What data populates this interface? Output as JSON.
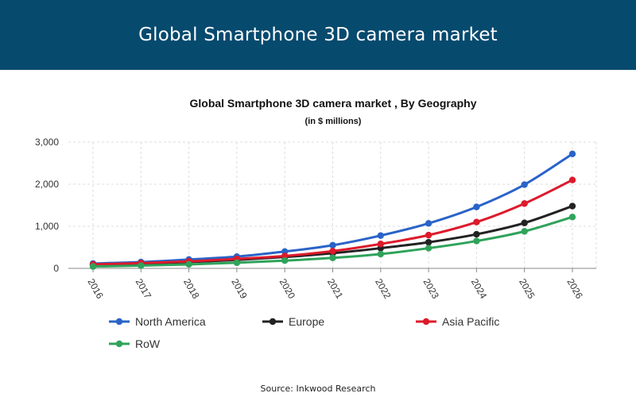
{
  "header": {
    "title": "Global Smartphone 3D camera market"
  },
  "footer": {
    "source": "Source: Inkwood Research"
  },
  "chart_data": {
    "type": "line",
    "title": "Global Smartphone 3D camera market , By Geography",
    "subtitle": "(in $ millions)",
    "xlabel": "",
    "ylabel": "",
    "x": [
      "2016",
      "2017",
      "2018",
      "2019",
      "2020",
      "2021",
      "2022",
      "2023",
      "2024",
      "2025",
      "2026"
    ],
    "ylim": [
      0,
      3000
    ],
    "yticks": [
      0,
      1000,
      2000,
      3000
    ],
    "ytick_labels": [
      "0",
      "1,000",
      "2,000",
      "3,000"
    ],
    "grid": true,
    "legend_position": "bottom",
    "series": [
      {
        "name": "North America",
        "color": "#2a63c8",
        "values": [
          115,
          150,
          210,
          280,
          400,
          550,
          780,
          1070,
          1460,
          1990,
          2720
        ]
      },
      {
        "name": "Europe",
        "color": "#222222",
        "values": [
          85,
          110,
          150,
          200,
          270,
          360,
          480,
          620,
          810,
          1080,
          1480
        ]
      },
      {
        "name": "Asia Pacific",
        "color": "#dd1a2b",
        "values": [
          95,
          125,
          165,
          225,
          295,
          410,
          580,
          790,
          1100,
          1540,
          2100
        ]
      },
      {
        "name": "RoW",
        "color": "#2fa35a",
        "values": [
          45,
          65,
          95,
          135,
          185,
          250,
          340,
          480,
          650,
          880,
          1220
        ]
      }
    ]
  }
}
